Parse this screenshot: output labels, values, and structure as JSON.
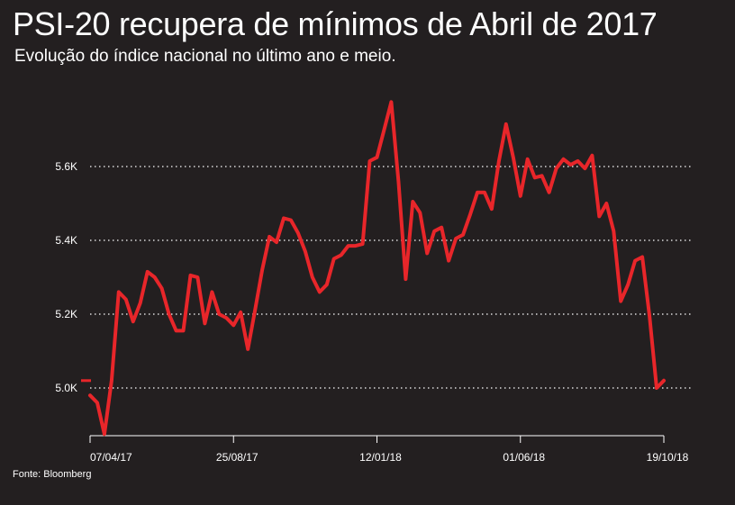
{
  "title": "PSI-20 recupera de mínimos de Abril de 2017",
  "subtitle": "Evolução do índice nacional no último ano e meio.",
  "source": "Fonte: Bloomberg",
  "chart_data": {
    "type": "line",
    "title": "PSI-20 recupera de mínimos de Abril de 2017",
    "subtitle": "Evolução do índice nacional no último ano e meio.",
    "xlabel": "",
    "ylabel": "",
    "ylim": [
      4880,
      5790
    ],
    "y_ticks": [
      {
        "value": 5000,
        "label": "5.0K"
      },
      {
        "value": 5200,
        "label": "5.2K"
      },
      {
        "value": 5400,
        "label": "5.4K"
      },
      {
        "value": 5600,
        "label": "5.6K"
      }
    ],
    "x_ticks": [
      "07/04/17",
      "25/08/17",
      "12/01/18",
      "01/06/18",
      "19/10/18"
    ],
    "grid": true,
    "line_color": "#e8262a",
    "series": [
      {
        "name": "",
        "values": [
          4980,
          4960,
          4875,
          5020,
          5260,
          5240,
          5180,
          5230,
          5315,
          5300,
          5270,
          5200,
          5155,
          5155,
          5305,
          5300,
          5175,
          5260,
          5200,
          5190,
          5170,
          5205,
          5105,
          5210,
          5320,
          5410,
          5395,
          5460,
          5455,
          5420,
          5370,
          5300,
          5260,
          5280,
          5350,
          5360,
          5385,
          5385,
          5390,
          5615,
          5625,
          5700,
          5775,
          5560,
          5295,
          5505,
          5475,
          5365,
          5425,
          5435,
          5345,
          5405,
          5415,
          5470,
          5530,
          5530,
          5485,
          5615,
          5715,
          5625,
          5520,
          5620,
          5570,
          5575,
          5530,
          5595,
          5620,
          5605,
          5615,
          5595,
          5630,
          5465,
          5500,
          5425,
          5235,
          5280,
          5345,
          5355,
          5195,
          5000,
          5020
        ]
      }
    ],
    "marker": {
      "value": 5020
    }
  }
}
